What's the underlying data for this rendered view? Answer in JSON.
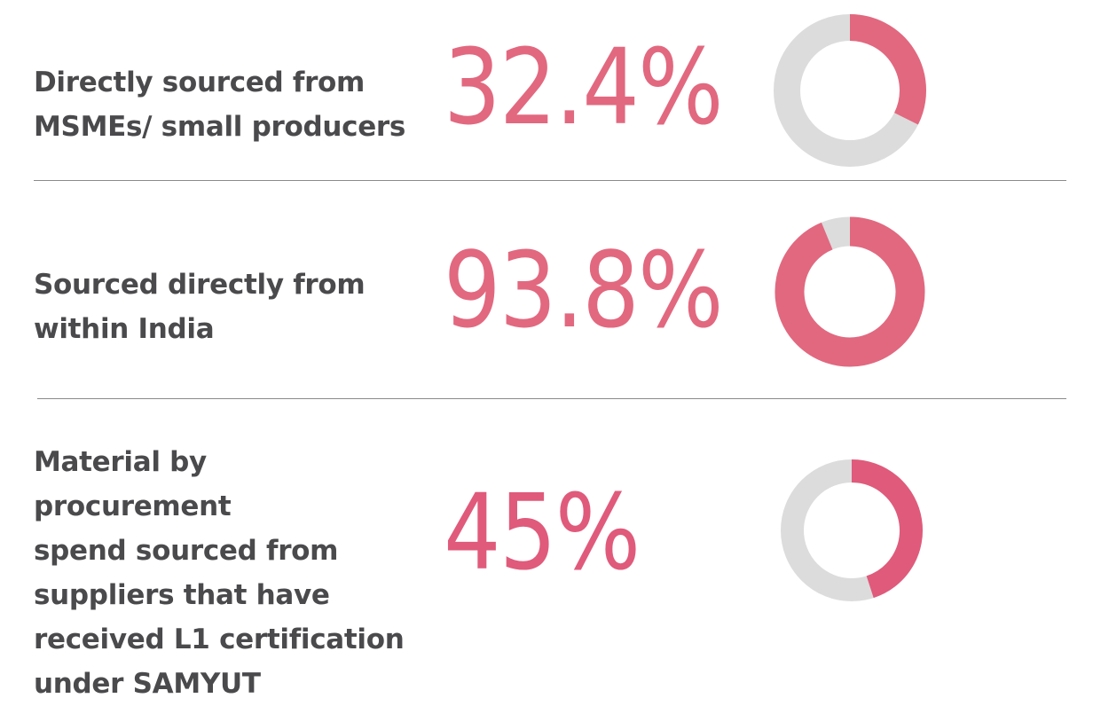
{
  "colors": {
    "accent": "#e2687f",
    "accent_dark": "#e05a7b",
    "track": "#dcdcdc",
    "label": "#4a4a4d",
    "divider": "#8a8a8a"
  },
  "chart_data": [
    {
      "type": "pie",
      "label": "Directly sourced from\nMSMEs/ small producers",
      "display": "32.4%",
      "value": 32.4,
      "max": 100
    },
    {
      "type": "pie",
      "label": "Sourced directly from\nwithin India",
      "display": "93.8%",
      "value": 93.8,
      "max": 100
    },
    {
      "type": "pie",
      "label": "Material by procurement\nspend sourced from\nsuppliers that have\nreceived L1 certification\nunder SAMYUT",
      "display": "45%",
      "value": 45,
      "max": 100
    }
  ]
}
